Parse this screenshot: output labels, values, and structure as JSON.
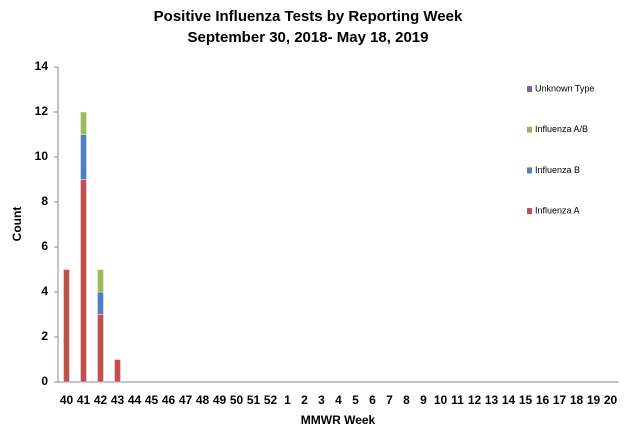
{
  "chart_data": {
    "type": "bar",
    "stacked": true,
    "title": "Positive Influenza Tests by Reporting Week",
    "subtitle": "September 30, 2018- May 18, 2019",
    "x_label": "MMWR Week",
    "y_label": "Count",
    "categories": [
      "40",
      "41",
      "42",
      "43",
      "44",
      "45",
      "46",
      "47",
      "48",
      "49",
      "50",
      "51",
      "52",
      "1",
      "2",
      "3",
      "4",
      "5",
      "6",
      "7",
      "8",
      "9",
      "10",
      "11",
      "12",
      "13",
      "14",
      "15",
      "16",
      "17",
      "18",
      "19",
      "20"
    ],
    "series": [
      {
        "name": "Influenza A",
        "color": "#c0504d",
        "values": [
          5,
          9,
          3,
          1,
          0,
          0,
          0,
          0,
          0,
          0,
          0,
          0,
          0,
          0,
          0,
          0,
          0,
          0,
          0,
          0,
          0,
          0,
          0,
          0,
          0,
          0,
          0,
          0,
          0,
          0,
          0,
          0,
          0
        ]
      },
      {
        "name": "Influenza B",
        "color": "#4f81bd",
        "values": [
          0,
          2,
          1,
          0,
          0,
          0,
          0,
          0,
          0,
          0,
          0,
          0,
          0,
          0,
          0,
          0,
          0,
          0,
          0,
          0,
          0,
          0,
          0,
          0,
          0,
          0,
          0,
          0,
          0,
          0,
          0,
          0,
          0
        ]
      },
      {
        "name": "Influenza A/B",
        "color": "#9bbb59",
        "values": [
          0,
          1,
          1,
          0,
          0,
          0,
          0,
          0,
          0,
          0,
          0,
          0,
          0,
          0,
          0,
          0,
          0,
          0,
          0,
          0,
          0,
          0,
          0,
          0,
          0,
          0,
          0,
          0,
          0,
          0,
          0,
          0,
          0
        ]
      },
      {
        "name": "Unknown Type",
        "color": "#8064a2",
        "values": [
          0,
          0,
          0,
          0,
          0,
          0,
          0,
          0,
          0,
          0,
          0,
          0,
          0,
          0,
          0,
          0,
          0,
          0,
          0,
          0,
          0,
          0,
          0,
          0,
          0,
          0,
          0,
          0,
          0,
          0,
          0,
          0,
          0
        ]
      }
    ],
    "ylim": [
      0,
      14
    ],
    "yticks": [
      0,
      2,
      4,
      6,
      8,
      10,
      12,
      14
    ],
    "grid": false,
    "legend": "right"
  }
}
